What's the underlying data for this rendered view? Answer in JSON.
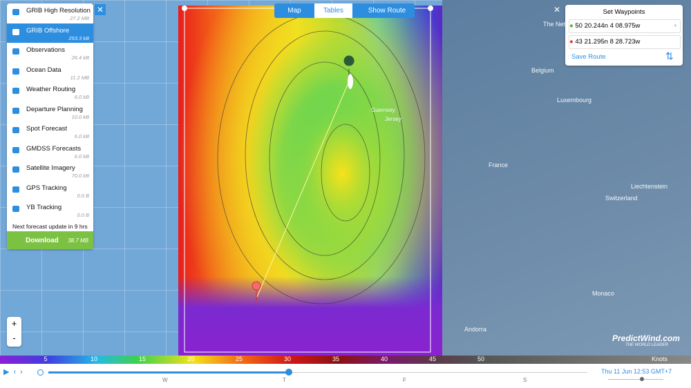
{
  "menu": {
    "items": [
      {
        "label": "GRIB High Resolution",
        "size": "27.2 MB"
      },
      {
        "label": "GRIB Offshore",
        "size": "253.3 kB"
      },
      {
        "label": "Observations",
        "size": "26.4 kB"
      },
      {
        "label": "Ocean Data",
        "size": "11.2 MB"
      },
      {
        "label": "Weather Routing",
        "size": "6.0 kB"
      },
      {
        "label": "Departure Planning",
        "size": "10.0 kB"
      },
      {
        "label": "Spot Forecast",
        "size": "6.0 kB"
      },
      {
        "label": "GMDSS Forecasts",
        "size": "6.0 kB"
      },
      {
        "label": "Satellite Imagery",
        "size": "70.0 kB"
      },
      {
        "label": "GPS Tracking",
        "size": "0.0 B"
      },
      {
        "label": "YB Tracking",
        "size": "0.0 B"
      }
    ],
    "next_update": "Next forecast update in 9 hrs",
    "download": {
      "label": "Download",
      "size": "38.7 MB"
    }
  },
  "tabs": [
    "Map",
    "Tables"
  ],
  "show_route": "Show Route",
  "waypoints": {
    "title": "Set Waypoints",
    "items": [
      "50 20.244n 4 08.975w",
      "43 21.295n 8 28.723w"
    ],
    "save": "Save Route"
  },
  "map_labels": [
    "The Neth",
    "Belgium",
    "Luxembourg",
    "France",
    "Liechtenstein",
    "Switzerland",
    "Monaco",
    "Andorra",
    "Guernsey",
    "Jersey"
  ],
  "legend": {
    "ticks": [
      5,
      10,
      15,
      20,
      25,
      30,
      35,
      40,
      45,
      50
    ],
    "unit": "Knots"
  },
  "timeline": {
    "days": [
      "W",
      "T",
      "F",
      "S"
    ],
    "datetime": "Thu 11 Jun 12:53 GMT+7"
  },
  "zoom": [
    "+",
    "-"
  ],
  "brand": {
    "name": "PredictWind.com",
    "tagline": "THE WORLD LEADER"
  }
}
